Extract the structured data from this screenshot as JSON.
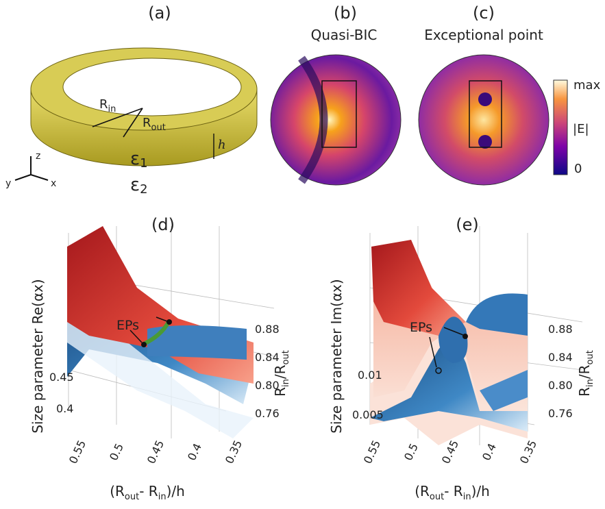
{
  "panels": {
    "a": {
      "label": "(a)",
      "r_in": [
        "R",
        "in"
      ],
      "r_out": [
        "R",
        "out"
      ],
      "h": "h",
      "eps1": [
        "ε",
        "1"
      ],
      "eps2": [
        "ε",
        "2"
      ],
      "axes": [
        "z",
        "y",
        "x"
      ]
    },
    "b": {
      "label": "(b)",
      "title": "Quasi-BIC"
    },
    "c": {
      "label": "(c)",
      "title": "Exceptional point",
      "colorbar": [
        "max",
        "|E|",
        "0"
      ]
    },
    "d": {
      "label": "(d)",
      "z_label": "Size parameter Re(αx)",
      "z_ticks": [
        "0.45",
        "0.4"
      ],
      "y_label": [
        "R",
        "in",
        "/R",
        "out"
      ],
      "y_ticks": [
        "0.88",
        "0.84",
        "0.80",
        "0.76"
      ],
      "x_ticks": [
        "0.55",
        "0.5",
        "0.45",
        "0.4",
        "0.35"
      ],
      "x_label": [
        "(R",
        "out",
        "- R",
        "in",
        ")/h"
      ],
      "annotation": "EPs"
    },
    "e": {
      "label": "(e)",
      "z_label": "Size parameter Im(αx)",
      "z_ticks": [
        "0.01",
        "0.005"
      ],
      "y_label": [
        "R",
        "in",
        "/R",
        "out"
      ],
      "y_ticks": [
        "0.88",
        "0.84",
        "0.80",
        "0.76"
      ],
      "x_ticks": [
        "0.55",
        "0.5",
        "0.45",
        "0.4",
        "0.35"
      ],
      "x_label": [
        "(R",
        "out",
        "- R",
        "in",
        ")/h"
      ],
      "annotation": "EPs"
    }
  }
}
